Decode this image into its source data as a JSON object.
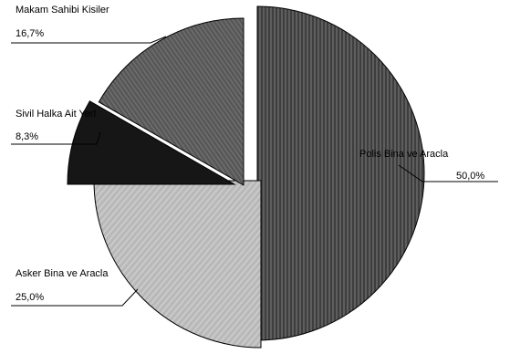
{
  "chart_data": {
    "type": "pie",
    "exploded": true,
    "legend": "none",
    "slices": [
      {
        "label": "Polis Bina ve Aracla",
        "value": 50.0,
        "pct_label": "50,0%",
        "color": "#4a4a4a",
        "texture": "vertical-stripes"
      },
      {
        "label": "Asker Bina ve Aracla",
        "value": 25.0,
        "pct_label": "25,0%",
        "color": "#bcbcbc",
        "texture": "diagonal-stripes"
      },
      {
        "label": "Sivil Halka Ait Yerl",
        "value": 8.3,
        "pct_label": "8,3%",
        "color": "#1a1a1a",
        "texture": "solid"
      },
      {
        "label": "Makam Sahibi Kisiler",
        "value": 16.7,
        "pct_label": "16,7%",
        "color": "#5a5a5a",
        "texture": "diagonal-stripes"
      }
    ]
  }
}
